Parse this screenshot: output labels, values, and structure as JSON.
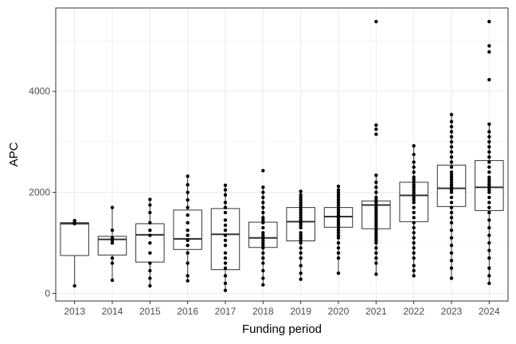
{
  "chart_data": {
    "type": "boxplot",
    "title": "",
    "xlabel": "Funding period",
    "ylabel": "APC",
    "ylim": [
      -150,
      5650
    ],
    "yticks": [
      0,
      2000,
      4000
    ],
    "ytick_labels": [
      "0",
      "2000",
      "4000"
    ],
    "grid": "major and minor, light grey",
    "legend": "none",
    "categories": [
      "2013",
      "2014",
      "2015",
      "2016",
      "2017",
      "2018",
      "2019",
      "2020",
      "2021",
      "2022",
      "2023",
      "2024"
    ],
    "boxes": [
      {
        "q1": 750,
        "median": 1380,
        "q3": 1400,
        "whisker_low": 150,
        "whisker_high": 1440
      },
      {
        "q1": 760,
        "median": 1070,
        "q3": 1130,
        "whisker_low": 260,
        "whisker_high": 1700
      },
      {
        "q1": 620,
        "median": 1160,
        "q3": 1380,
        "whisker_low": 150,
        "whisker_high": 1860
      },
      {
        "q1": 870,
        "median": 1080,
        "q3": 1650,
        "whisker_low": 250,
        "whisker_high": 2320
      },
      {
        "q1": 470,
        "median": 1170,
        "q3": 1680,
        "whisker_low": 60,
        "whisker_high": 2140
      },
      {
        "q1": 910,
        "median": 1100,
        "q3": 1410,
        "whisker_low": 170,
        "whisker_high": 2100
      },
      {
        "q1": 1040,
        "median": 1420,
        "q3": 1700,
        "whisker_low": 280,
        "whisker_high": 2020
      },
      {
        "q1": 1310,
        "median": 1520,
        "q3": 1700,
        "whisker_low": 400,
        "whisker_high": 2120
      },
      {
        "q1": 1280,
        "median": 1750,
        "q3": 1830,
        "whisker_low": 380,
        "whisker_high": 2340
      },
      {
        "q1": 1420,
        "median": 1940,
        "q3": 2200,
        "whisker_low": 350,
        "whisker_high": 2920
      },
      {
        "q1": 1720,
        "median": 2080,
        "q3": 2540,
        "whisker_low": 300,
        "whisker_high": 3540
      },
      {
        "q1": 1640,
        "median": 2100,
        "q3": 2630,
        "whisker_low": 200,
        "whisker_high": 3350
      }
    ],
    "points": [
      [
        150,
        1380,
        1400,
        1440
      ],
      [
        260,
        600,
        700,
        1000,
        1050,
        1100,
        1250,
        1700
      ],
      [
        150,
        300,
        450,
        600,
        800,
        1000,
        1150,
        1250,
        1400,
        1600,
        1750,
        1860
      ],
      [
        250,
        350,
        600,
        800,
        950,
        1050,
        1150,
        1250,
        1400,
        1550,
        1700,
        1850,
        2000,
        2150,
        2320
      ],
      [
        60,
        200,
        350,
        500,
        600,
        700,
        800,
        950,
        1050,
        1150,
        1250,
        1350,
        1450,
        1600,
        1700,
        1800,
        1950,
        2050,
        2140
      ],
      [
        170,
        300,
        450,
        600,
        700,
        800,
        900,
        950,
        1000,
        1050,
        1100,
        1150,
        1200,
        1300,
        1400,
        1450,
        1500,
        1600,
        1700,
        1800,
        1900,
        2000,
        2100,
        2430
      ],
      [
        280,
        400,
        550,
        700,
        800,
        900,
        1000,
        1050,
        1100,
        1150,
        1200,
        1300,
        1350,
        1400,
        1450,
        1500,
        1550,
        1600,
        1650,
        1700,
        1750,
        1800,
        1850,
        1900,
        1950,
        2020
      ],
      [
        400,
        700,
        800,
        900,
        1000,
        1100,
        1150,
        1200,
        1250,
        1300,
        1350,
        1400,
        1450,
        1500,
        1520,
        1550,
        1600,
        1650,
        1700,
        1750,
        1800,
        1850,
        1900,
        1950,
        2000,
        2050,
        2120
      ],
      [
        380,
        600,
        700,
        800,
        900,
        1000,
        1050,
        1100,
        1150,
        1200,
        1250,
        1300,
        1350,
        1400,
        1450,
        1500,
        1550,
        1600,
        1650,
        1700,
        1750,
        1800,
        1850,
        1900,
        2000,
        2100,
        2200,
        2340,
        3150,
        3250,
        3330,
        5380
      ],
      [
        350,
        450,
        550,
        700,
        800,
        900,
        1000,
        1100,
        1200,
        1300,
        1400,
        1500,
        1600,
        1700,
        1800,
        1850,
        1900,
        1950,
        2000,
        2050,
        2100,
        2150,
        2200,
        2250,
        2300,
        2400,
        2500,
        2600,
        2750,
        2920
      ],
      [
        300,
        500,
        650,
        800,
        950,
        1100,
        1250,
        1400,
        1500,
        1600,
        1700,
        1800,
        1900,
        2000,
        2050,
        2100,
        2150,
        2200,
        2250,
        2300,
        2350,
        2400,
        2500,
        2600,
        2700,
        2800,
        2900,
        3000,
        3100,
        3200,
        3300,
        3400,
        3540
      ],
      [
        200,
        350,
        500,
        700,
        850,
        1000,
        1150,
        1300,
        1450,
        1600,
        1700,
        1800,
        1900,
        2000,
        2050,
        2100,
        2150,
        2200,
        2250,
        2300,
        2400,
        2500,
        2600,
        2700,
        2800,
        2900,
        3000,
        3100,
        3200,
        3350,
        4230,
        4780,
        4900,
        5380
      ]
    ]
  }
}
